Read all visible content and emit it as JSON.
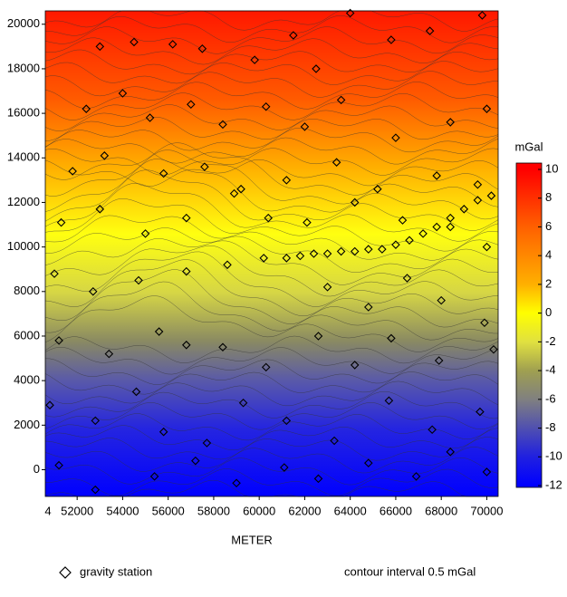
{
  "chart_data": {
    "type": "scatter",
    "xlabel": "METER",
    "x_corner_label": "4",
    "note": "contour interval 0.5 mGal",
    "xlim": [
      50600,
      70500
    ],
    "ylim": [
      -1200,
      20600
    ],
    "xticks": [
      52000,
      54000,
      56000,
      58000,
      60000,
      62000,
      64000,
      66000,
      68000,
      70000
    ],
    "yticks": [
      20000,
      18000,
      16000,
      14000,
      12000,
      10000,
      8000,
      6000,
      4000,
      2000,
      0
    ],
    "colorbar": {
      "title": "mGal",
      "lim": [
        -12,
        10
      ],
      "ticks": [
        10,
        8,
        6,
        4,
        2,
        0,
        -2,
        -4,
        -6,
        -8,
        -10,
        -12
      ],
      "stops": [
        {
          "value": 10,
          "color": "#ff0000"
        },
        {
          "value": 6,
          "color": "#ff6000"
        },
        {
          "value": 2,
          "color": "#ffb000"
        },
        {
          "value": 0,
          "color": "#ffff00"
        },
        {
          "value": -2,
          "color": "#e0e040"
        },
        {
          "value": -4,
          "color": "#a0a050"
        },
        {
          "value": -6,
          "color": "#808080"
        },
        {
          "value": -8,
          "color": "#5050b0"
        },
        {
          "value": -10,
          "color": "#2020e0"
        },
        {
          "value": -12,
          "color": "#0000ff"
        }
      ]
    },
    "series": [
      {
        "name": "gravity station",
        "color": "#000000",
        "x": [
          53000,
          54500,
          56200,
          57500,
          59800,
          61500,
          62500,
          64000,
          65800,
          67500,
          69800,
          52400,
          54000,
          55200,
          57000,
          58400,
          60300,
          62000,
          63600,
          66000,
          68400,
          70000,
          51800,
          53200,
          55800,
          57600,
          59200,
          61200,
          63400,
          65200,
          67800,
          69600,
          51300,
          53000,
          55000,
          56800,
          58900,
          60400,
          62100,
          64200,
          66300,
          68400,
          70000,
          51000,
          52700,
          54700,
          56800,
          58600,
          60200,
          63000,
          64800,
          66500,
          68000,
          69900,
          51200,
          53400,
          55600,
          56800,
          58400,
          60300,
          62600,
          64200,
          65800,
          67900,
          70300,
          50800,
          52800,
          54600,
          55800,
          57700,
          59300,
          61200,
          63300,
          65700,
          67600,
          69700,
          51200,
          52800,
          55400,
          57200,
          59000,
          61100,
          62600,
          64800,
          66900,
          68400,
          70000,
          61200,
          61800,
          62400,
          63000,
          63600,
          64200,
          64800,
          65400,
          66000,
          66600,
          67200,
          67800,
          68400,
          69000,
          69600,
          70200
        ],
        "y": [
          19000,
          19200,
          19100,
          18900,
          18400,
          19500,
          18000,
          20500,
          19300,
          19700,
          20400,
          16200,
          16900,
          15800,
          16400,
          15500,
          16300,
          15400,
          16600,
          14900,
          15600,
          16200,
          13400,
          14100,
          13300,
          13600,
          12600,
          13000,
          13800,
          12600,
          13200,
          12800,
          11100,
          11700,
          10600,
          11300,
          12400,
          11300,
          11100,
          12000,
          11200,
          10900,
          10000,
          8800,
          8000,
          8500,
          8900,
          9200,
          9500,
          8200,
          7300,
          8600,
          7600,
          6600,
          5800,
          5200,
          6200,
          5600,
          5500,
          4600,
          6000,
          4700,
          5900,
          4900,
          5400,
          2900,
          2200,
          3500,
          1700,
          1200,
          3000,
          2200,
          1300,
          3100,
          1800,
          2600,
          200,
          -900,
          -300,
          400,
          -600,
          100,
          -400,
          300,
          -300,
          800,
          -100,
          9500,
          9600,
          9700,
          9700,
          9800,
          9800,
          9900,
          9900,
          10100,
          10300,
          10600,
          10900,
          11300,
          11700,
          12100,
          12300
        ]
      }
    ]
  }
}
